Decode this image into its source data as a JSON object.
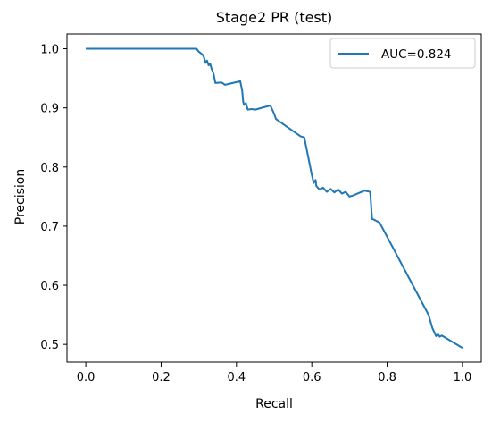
{
  "chart_data": {
    "type": "line",
    "title": "Stage2 PR (test)",
    "xlabel": "Recall",
    "ylabel": "Precision",
    "xlim": [
      -0.05,
      1.05
    ],
    "ylim": [
      0.47,
      1.025
    ],
    "xticks": [
      0.0,
      0.2,
      0.4,
      0.6,
      0.8,
      1.0
    ],
    "xtick_labels": [
      "0.0",
      "0.2",
      "0.4",
      "0.6",
      "0.8",
      "1.0"
    ],
    "yticks": [
      0.5,
      0.6,
      0.7,
      0.8,
      0.9,
      1.0
    ],
    "ytick_labels": [
      "0.5",
      "0.6",
      "0.7",
      "0.8",
      "0.9",
      "1.0"
    ],
    "grid": false,
    "legend_position": "top-right",
    "series": [
      {
        "name": "AUC=0.824",
        "color": "#1f77b4",
        "x": [
          0.0,
          0.294,
          0.3,
          0.31,
          0.314,
          0.318,
          0.322,
          0.326,
          0.33,
          0.334,
          0.338,
          0.34,
          0.344,
          0.36,
          0.37,
          0.41,
          0.415,
          0.418,
          0.42,
          0.425,
          0.43,
          0.44,
          0.45,
          0.49,
          0.5,
          0.505,
          0.57,
          0.58,
          0.6,
          0.605,
          0.61,
          0.612,
          0.62,
          0.63,
          0.64,
          0.65,
          0.66,
          0.67,
          0.68,
          0.69,
          0.7,
          0.71,
          0.74,
          0.755,
          0.76,
          0.762,
          0.78,
          0.91,
          0.92,
          0.93,
          0.935,
          0.94,
          0.945,
          1.0
        ],
        "y": [
          1.0,
          1.0,
          0.995,
          0.99,
          0.985,
          0.976,
          0.98,
          0.972,
          0.975,
          0.966,
          0.96,
          0.955,
          0.942,
          0.943,
          0.939,
          0.945,
          0.93,
          0.91,
          0.905,
          0.908,
          0.897,
          0.898,
          0.897,
          0.904,
          0.89,
          0.881,
          0.852,
          0.85,
          0.787,
          0.773,
          0.778,
          0.768,
          0.762,
          0.765,
          0.758,
          0.763,
          0.757,
          0.762,
          0.755,
          0.758,
          0.75,
          0.752,
          0.76,
          0.758,
          0.712,
          0.712,
          0.706,
          0.55,
          0.528,
          0.514,
          0.517,
          0.513,
          0.515,
          0.494
        ]
      }
    ]
  }
}
